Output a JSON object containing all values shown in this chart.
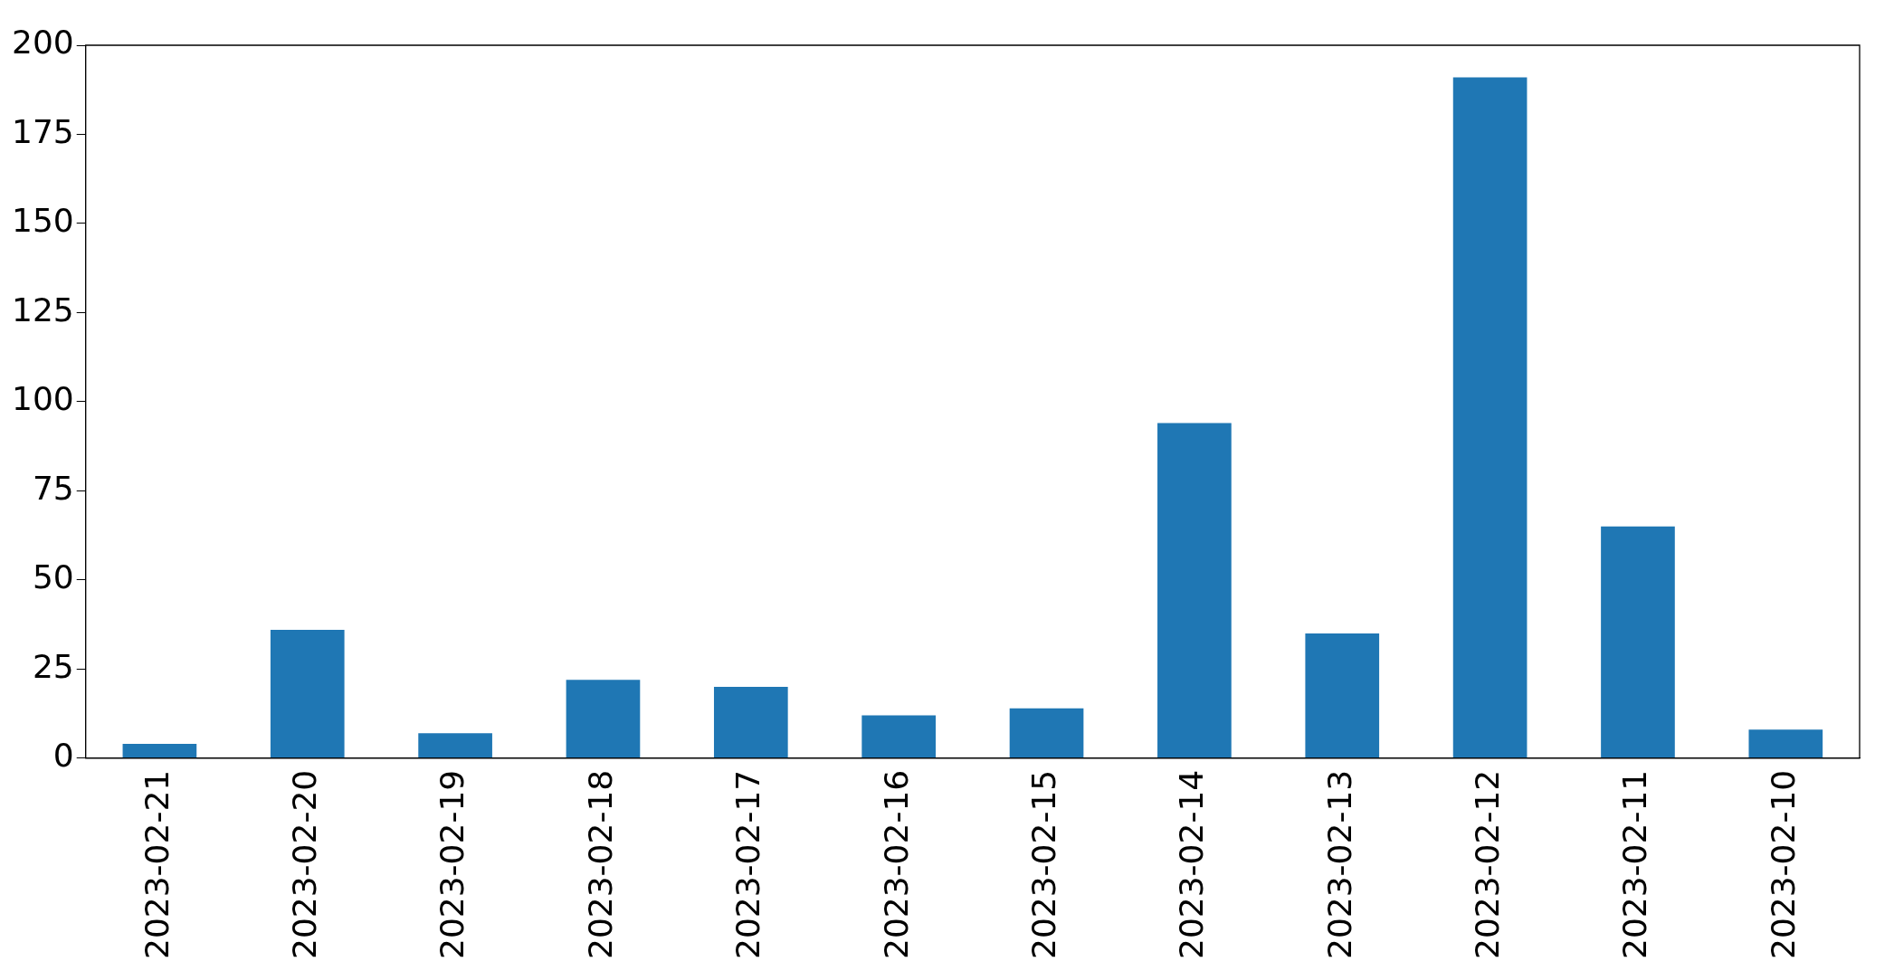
{
  "chart_data": {
    "type": "bar",
    "categories": [
      "2023-02-21",
      "2023-02-20",
      "2023-02-19",
      "2023-02-18",
      "2023-02-17",
      "2023-02-16",
      "2023-02-15",
      "2023-02-14",
      "2023-02-13",
      "2023-02-12",
      "2023-02-11",
      "2023-02-10"
    ],
    "values": [
      4,
      36,
      7,
      22,
      20,
      12,
      14,
      94,
      35,
      191,
      65,
      8
    ],
    "color": "#1f77b4",
    "ylim": [
      0,
      200
    ],
    "yticks": [
      0,
      25,
      50,
      75,
      100,
      125,
      150,
      175,
      200
    ],
    "grid": false,
    "legend": false
  }
}
